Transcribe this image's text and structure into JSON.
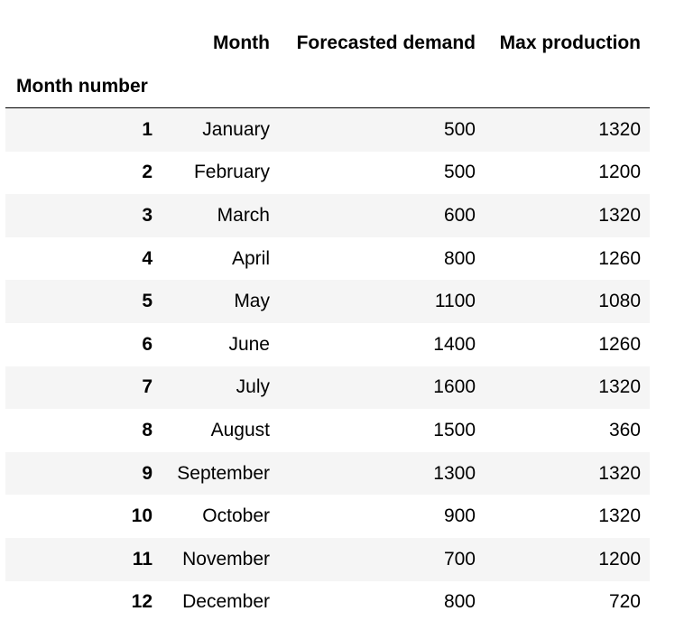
{
  "table": {
    "columns": [
      "Month",
      "Forecasted demand",
      "Max production"
    ],
    "index_name": "Month number",
    "rows": [
      {
        "index": "1",
        "cells": [
          "January",
          "500",
          "1320"
        ]
      },
      {
        "index": "2",
        "cells": [
          "February",
          "500",
          "1200"
        ]
      },
      {
        "index": "3",
        "cells": [
          "March",
          "600",
          "1320"
        ]
      },
      {
        "index": "4",
        "cells": [
          "April",
          "800",
          "1260"
        ]
      },
      {
        "index": "5",
        "cells": [
          "May",
          "1100",
          "1080"
        ]
      },
      {
        "index": "6",
        "cells": [
          "June",
          "1400",
          "1260"
        ]
      },
      {
        "index": "7",
        "cells": [
          "July",
          "1600",
          "1320"
        ]
      },
      {
        "index": "8",
        "cells": [
          "August",
          "1500",
          "360"
        ]
      },
      {
        "index": "9",
        "cells": [
          "September",
          "1300",
          "1320"
        ]
      },
      {
        "index": "10",
        "cells": [
          "October",
          "900",
          "1320"
        ]
      },
      {
        "index": "11",
        "cells": [
          "November",
          "700",
          "1200"
        ]
      },
      {
        "index": "12",
        "cells": [
          "December",
          "800",
          "720"
        ]
      }
    ]
  }
}
